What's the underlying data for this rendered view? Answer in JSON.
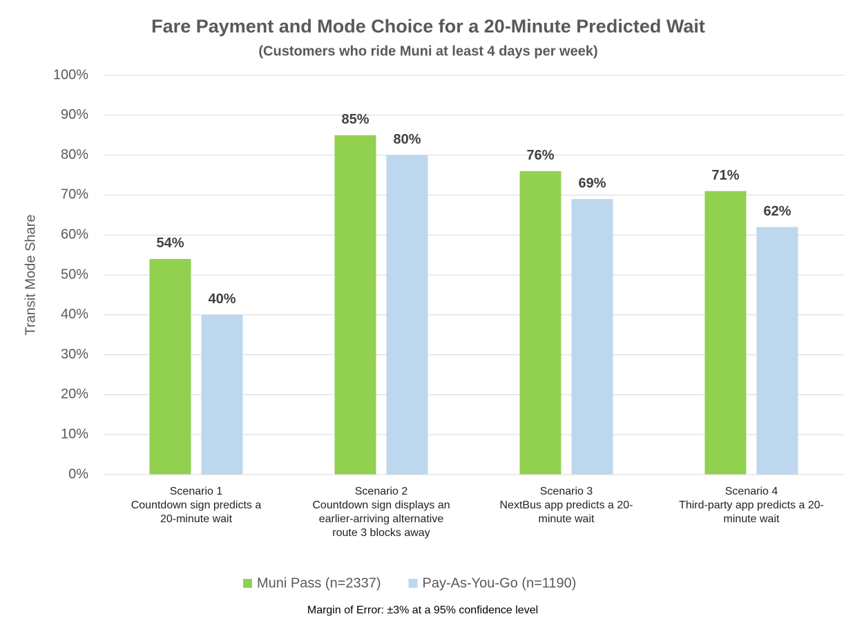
{
  "chart_data": {
    "type": "bar",
    "title": "Fare Payment and Mode Choice for a 20-Minute Predicted Wait",
    "subtitle": "(Customers who ride Muni at least 4 days per week)",
    "ylabel": "Transit Mode Share",
    "note": "Margin of Error: ±3% at a 95% confidence level",
    "categories": [
      "Scenario 1\nCountdown sign predicts a\n20-minute wait",
      "Scenario 2\nCountdown sign displays an\nearlier-arriving alternative\nroute 3 blocks away",
      "Scenario 3\nNextBus app predicts a 20-\nminute wait",
      "Scenario 4\nThird-party app predicts a 20-\nminute wait"
    ],
    "series": [
      {
        "name": "Muni Pass (n=2337)",
        "color": "#92d050",
        "values": [
          54,
          85,
          76,
          71
        ],
        "value_labels": [
          "54%",
          "85%",
          "76%",
          "71%"
        ]
      },
      {
        "name": "Pay-As-You-Go (n=1190)",
        "color": "#bdd7ee",
        "values": [
          40,
          80,
          69,
          62
        ],
        "value_labels": [
          "40%",
          "80%",
          "69%",
          "62%"
        ]
      }
    ],
    "ylim": [
      0,
      100
    ],
    "yticks": [
      {
        "value": 0,
        "label": "0%"
      },
      {
        "value": 10,
        "label": "10%"
      },
      {
        "value": 20,
        "label": "20%"
      },
      {
        "value": 30,
        "label": "30%"
      },
      {
        "value": 40,
        "label": "40%"
      },
      {
        "value": 50,
        "label": "50%"
      },
      {
        "value": 60,
        "label": "60%"
      },
      {
        "value": 70,
        "label": "70%"
      },
      {
        "value": 80,
        "label": "80%"
      },
      {
        "value": 90,
        "label": "90%"
      },
      {
        "value": 100,
        "label": "100%"
      }
    ],
    "grid": true,
    "legend": "bottom"
  }
}
